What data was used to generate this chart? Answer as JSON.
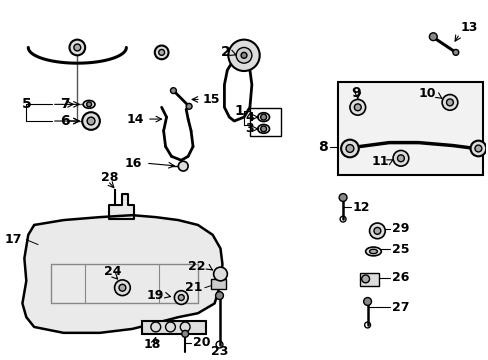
{
  "bg_color": "#ffffff",
  "line_color": "#000000",
  "text_color": "#000000",
  "label_fontsize": 9,
  "fig_width": 4.89,
  "fig_height": 3.6,
  "dpi": 100
}
